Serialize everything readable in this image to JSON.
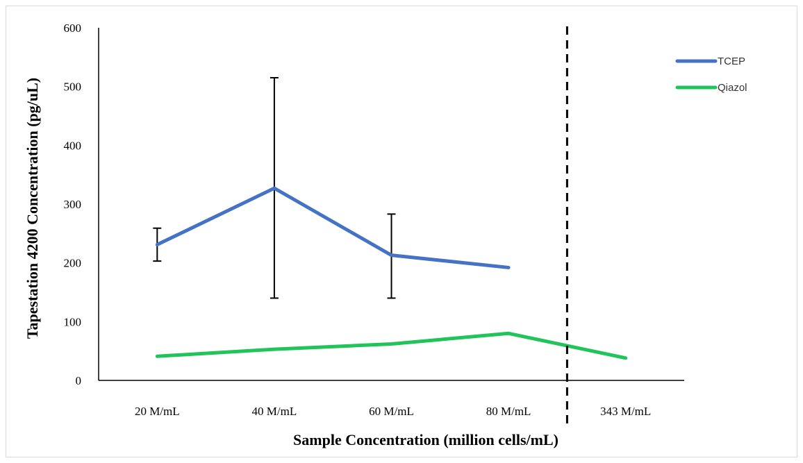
{
  "chart_data": {
    "type": "line",
    "categories": [
      "20 M/mL",
      "40 M/mL",
      "60 M/mL",
      "80 M/mL",
      "343 M/mL"
    ],
    "series": [
      {
        "name": "TCEP",
        "color": "#4472c4",
        "values": [
          231,
          327,
          213,
          192,
          null
        ],
        "error_low": [
          203,
          140,
          140,
          null,
          null
        ],
        "error_high": [
          259,
          515,
          283,
          null,
          null
        ]
      },
      {
        "name": "Qiazol",
        "color": "#21c45a",
        "values": [
          41,
          53,
          62,
          80,
          38
        ]
      }
    ],
    "xlabel": "Sample Concentration (million cells/mL)",
    "ylabel": "Tapestation 4200 Concentration (pg/uL)",
    "ylim": [
      0,
      600
    ],
    "yticks": [
      0,
      100,
      200,
      300,
      400,
      500,
      600
    ],
    "divider_after_category": "80 M/mL",
    "grid": false,
    "legend_position": "top-right"
  }
}
